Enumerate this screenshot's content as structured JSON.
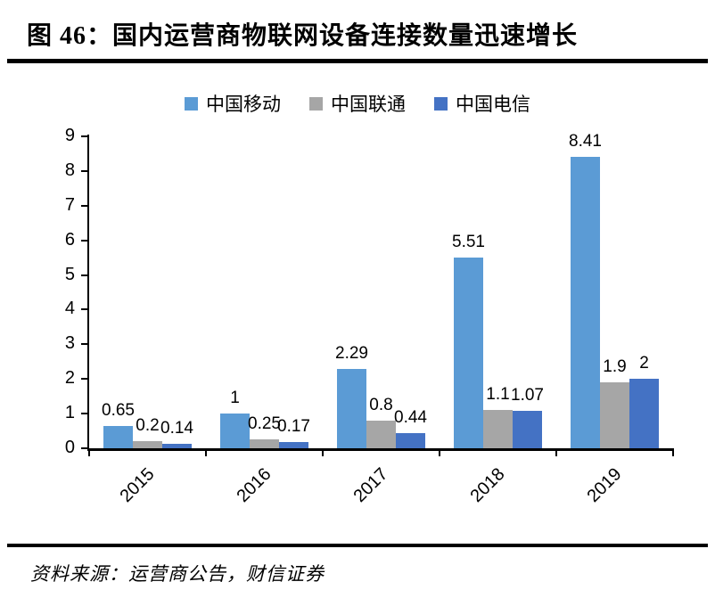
{
  "header": {
    "title": "图 46：国内运营商物联网设备连接数量迅速增长"
  },
  "footer": {
    "source": "资料来源：运营商公告，财信证券"
  },
  "colors": {
    "china_mobile": "#5B9BD5",
    "china_unicom": "#A6A6A6",
    "china_telecom": "#4472C4",
    "axis": "#000000",
    "background": "#FFFFFF"
  },
  "chart_data": {
    "type": "bar",
    "title": "",
    "xlabel": "",
    "ylabel": "",
    "categories": [
      "2015",
      "2016",
      "2017",
      "2018",
      "2019"
    ],
    "series": [
      {
        "name": "中国移动",
        "color": "#5B9BD5",
        "values": [
          0.65,
          1,
          2.29,
          5.51,
          8.41
        ],
        "labels": [
          "0.65",
          "1",
          "2.29",
          "5.51",
          "8.41"
        ]
      },
      {
        "name": "中国联通",
        "color": "#A6A6A6",
        "values": [
          0.2,
          0.25,
          0.8,
          1.1,
          1.9
        ],
        "labels": [
          "0.2",
          "0.25",
          "0.8",
          "1.1",
          "1.9"
        ]
      },
      {
        "name": "中国电信",
        "color": "#4472C4",
        "values": [
          0.14,
          0.17,
          0.44,
          1.07,
          2
        ],
        "labels": [
          "0.14",
          "0.17",
          "0.44",
          "1.07",
          "2"
        ]
      }
    ],
    "ylim": [
      0,
      9
    ],
    "ytick_interval": 1,
    "yticks": [
      "0",
      "1",
      "2",
      "3",
      "4",
      "5",
      "6",
      "7",
      "8",
      "9"
    ],
    "x_tick_rotation": -45,
    "grid": false,
    "legend_position": "top",
    "data_labels": true
  }
}
